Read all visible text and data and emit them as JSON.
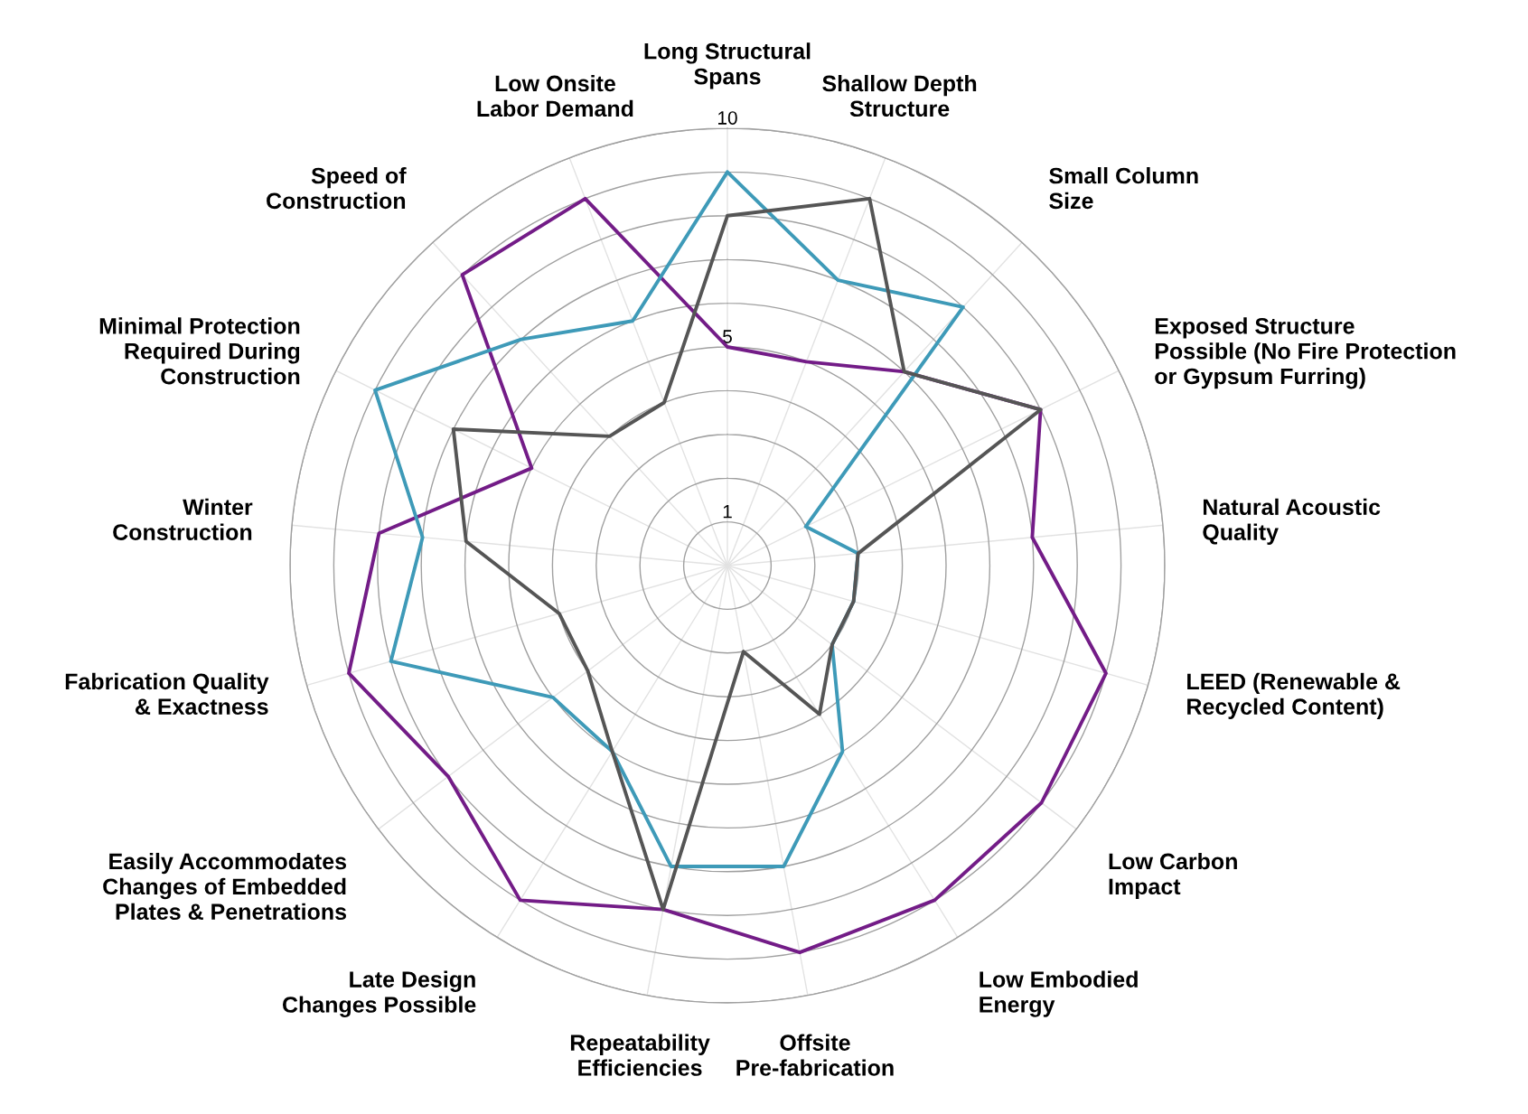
{
  "chart_data": {
    "type": "radar",
    "categories": [
      "Long Structural\nSpans",
      "Shallow Depth\nStructure",
      "Small Column\nSize",
      "Exposed Structure\nPossible (No Fire Protection\nor Gypsum Furring)",
      "Natural Acoustic\nQuality",
      "LEED (Renewable &\nRecycled Content)",
      "Low Carbon\nImpact",
      "Low Embodied\nEnergy",
      "Offsite\nPre-fabrication",
      "Repeatability\nEfficiencies",
      "Late Design\nChanges Possible",
      "Easily Accommodates\nChanges of Embedded\nPlates & Penetrations",
      "Fabrication Quality\n& Exactness",
      "Winter\nConstruction",
      "Minimal Protection\nRequired During\nConstruction",
      "Speed of\nConstruction",
      "Low Onsite\nLabor Demand"
    ],
    "series": [
      {
        "color": "#731c87",
        "values": [
          5,
          5,
          6,
          8,
          7,
          9,
          9,
          9,
          9,
          8,
          9,
          8,
          9,
          8,
          5,
          9,
          9
        ]
      },
      {
        "color": "#3e9ab8",
        "values": [
          9,
          7,
          8,
          2,
          3,
          3,
          3,
          5,
          7,
          7,
          5,
          5,
          8,
          7,
          9,
          7,
          6
        ]
      },
      {
        "color": "#555555",
        "values": [
          8,
          9,
          6,
          8,
          3,
          3,
          3,
          4,
          2,
          8,
          5,
          4,
          4,
          6,
          7,
          4,
          4
        ]
      }
    ],
    "ylim": [
      0,
      10
    ],
    "yticks": [
      1,
      5,
      10
    ],
    "grid": true
  }
}
